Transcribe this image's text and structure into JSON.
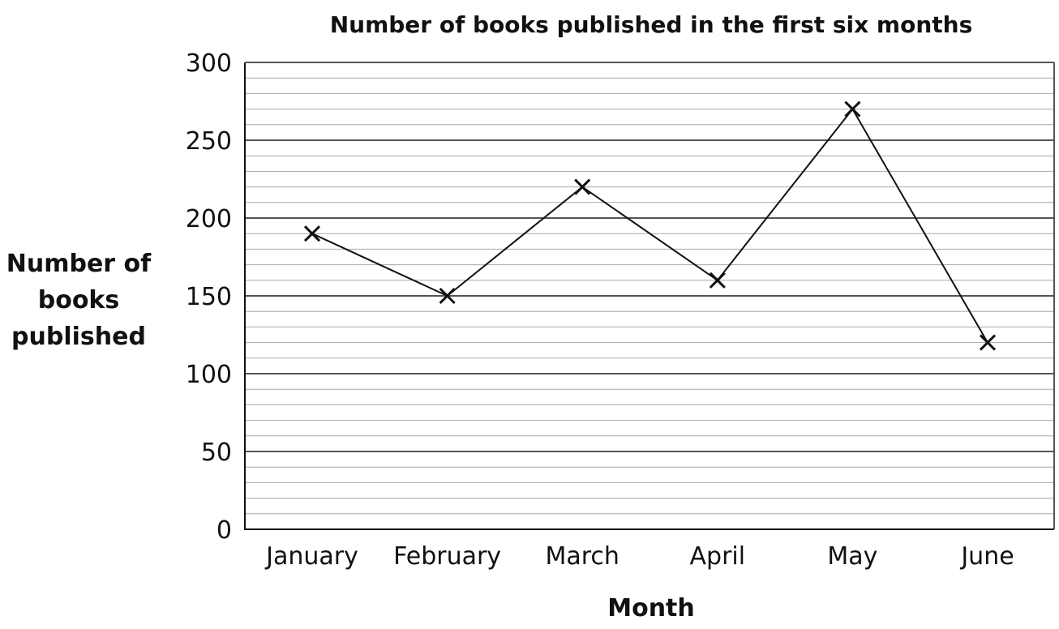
{
  "chart_data": {
    "type": "line",
    "title": "Number of books published in the first six months",
    "xlabel": "Month",
    "ylabel_lines": [
      "Number of",
      "books",
      "published"
    ],
    "categories": [
      "January",
      "February",
      "March",
      "April",
      "May",
      "June"
    ],
    "series": [
      {
        "values": [
          190,
          150,
          220,
          160,
          270,
          120
        ]
      }
    ],
    "ylim": [
      0,
      300
    ],
    "y_ticks": [
      "0",
      "50",
      "100",
      "150",
      "200",
      "250",
      "300"
    ],
    "y_tick_values": [
      0,
      50,
      100,
      150,
      200,
      250,
      300
    ],
    "minor_step": 10,
    "grid": true,
    "marker": "x",
    "colors": {
      "major_grid": "#555555",
      "minor_grid": "#a8a8a8",
      "line": "#111111"
    }
  }
}
